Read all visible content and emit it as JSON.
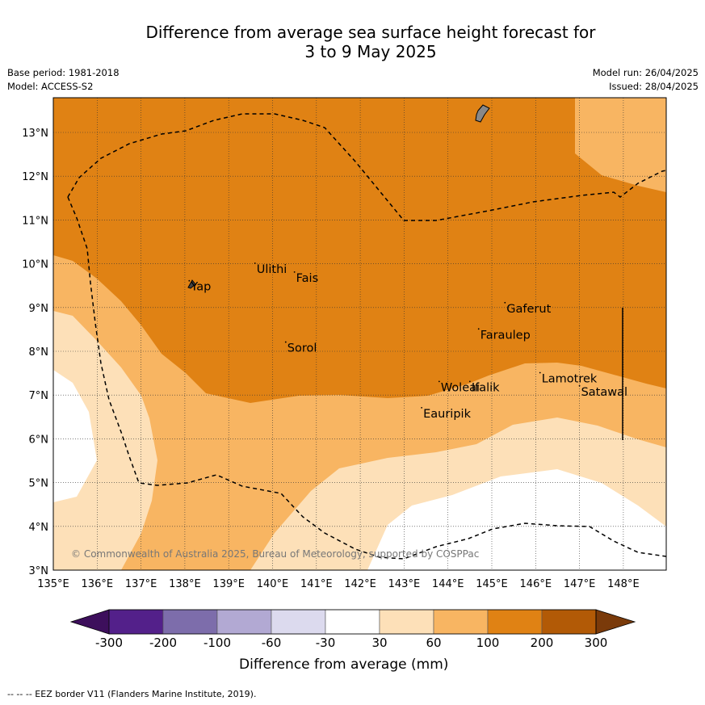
{
  "title_line1": "Difference from average sea surface height forecast for",
  "title_line2": "3 to 9 May 2025",
  "meta": {
    "base_period": "Base period: 1981-2018",
    "model": "Model: ACCESS-S2",
    "model_run": "Model run: 26/04/2025",
    "issued": "Issued: 28/04/2025"
  },
  "map": {
    "lon_range": [
      135,
      149
    ],
    "lat_range": [
      3,
      13.8
    ],
    "lon_ticks": [
      "135°E",
      "136°E",
      "137°E",
      "138°E",
      "139°E",
      "140°E",
      "141°E",
      "142°E",
      "143°E",
      "144°E",
      "145°E",
      "146°E",
      "147°E",
      "148°E"
    ],
    "lat_ticks": [
      "3°N",
      "4°N",
      "5°N",
      "6°N",
      "7°N",
      "8°N",
      "9°N",
      "10°N",
      "11°N",
      "12°N",
      "13°N"
    ],
    "places": [
      {
        "name": "Yap",
        "lon": 138.1,
        "lat": 9.5
      },
      {
        "name": "Ulithi",
        "lon": 139.6,
        "lat": 9.9
      },
      {
        "name": "Fais",
        "lon": 140.5,
        "lat": 9.7
      },
      {
        "name": "Sorol",
        "lon": 140.3,
        "lat": 8.1
      },
      {
        "name": "Gaferut",
        "lon": 145.3,
        "lat": 9.0
      },
      {
        "name": "Faraulep",
        "lon": 144.7,
        "lat": 8.4
      },
      {
        "name": "Woleai",
        "lon": 143.8,
        "lat": 7.2
      },
      {
        "name": "Ifalik",
        "lon": 144.5,
        "lat": 7.2
      },
      {
        "name": "Lamotrek",
        "lon": 146.1,
        "lat": 7.4
      },
      {
        "name": "Satawal",
        "lon": 147.0,
        "lat": 7.1
      },
      {
        "name": "Eauripik",
        "lon": 143.4,
        "lat": 6.6
      }
    ],
    "copyright": "© Commonwealth of Australia 2025, Bureau of Meteorology, supported by COSPPac"
  },
  "colorbar": {
    "title": "Difference from average (mm)",
    "ticks": [
      "-300",
      "-200",
      "-100",
      "-60",
      "-30",
      "30",
      "60",
      "100",
      "200",
      "300"
    ],
    "colors": [
      "#3d0f5c",
      "#53208a",
      "#7d6dab",
      "#b2a9d3",
      "#dcdaee",
      "#ffffff",
      "#fde0b8",
      "#f8b562",
      "#e08214",
      "#b25a06",
      "#7a3a0a"
    ]
  },
  "footer": "--  --  -- EEZ border V11 (Flanders Marine Institute, 2019)."
}
